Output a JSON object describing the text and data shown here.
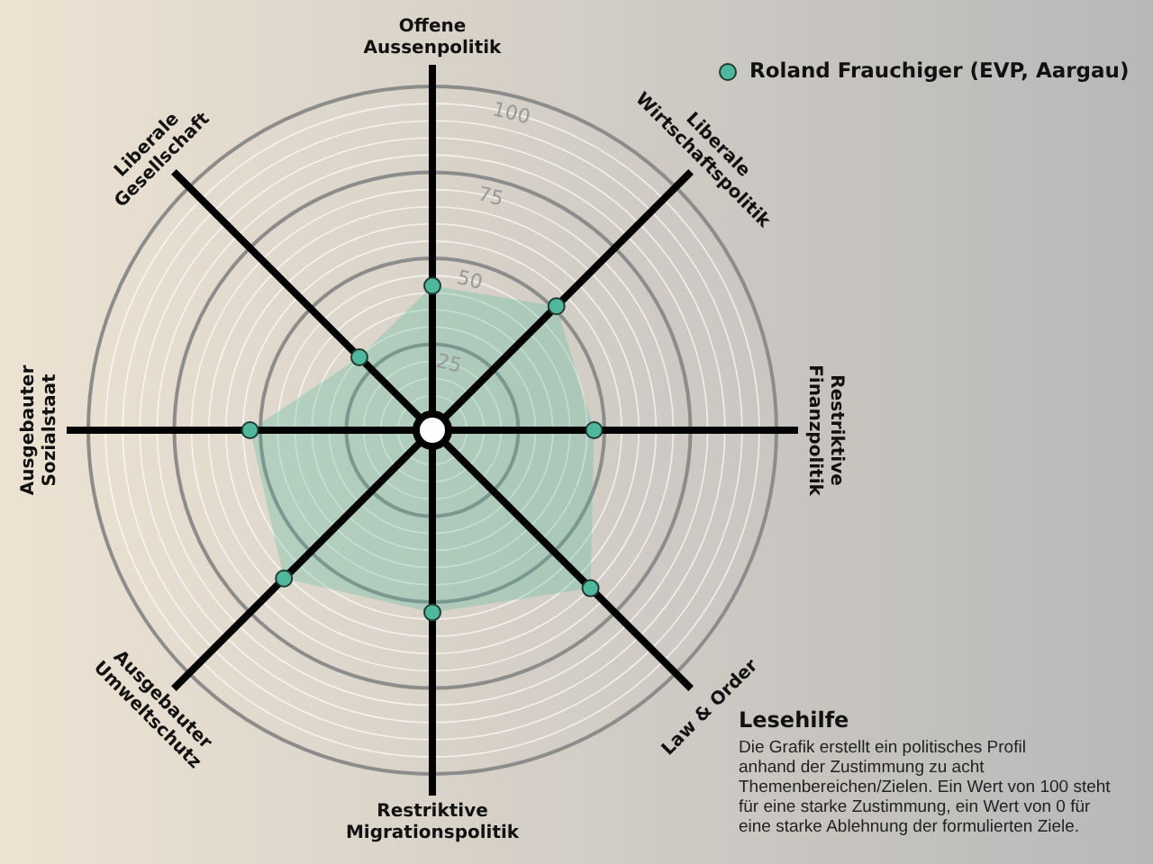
{
  "chart_data": {
    "type": "radar",
    "categories": [
      "Offene\nAussenpolitik",
      "Liberale\nWirtschaftspolitik",
      "Restriktive\nFinanzpolitik",
      "Law & Order",
      "Restriktive\nMigrationspolitik",
      "Ausgebauter\nUmweltschutz",
      "Ausgebauter\nSozialstaat",
      "Liberale\nGesellschaft"
    ],
    "series": [
      {
        "name": "Roland Frauchiger (EVP, Aargau)",
        "color": "#4fb89c",
        "values": [
          42,
          51,
          47,
          65,
          53,
          61,
          53,
          30
        ]
      }
    ],
    "ylim": [
      0,
      100
    ],
    "yticks": [
      25,
      50,
      75,
      100
    ],
    "grid": true,
    "legend": "top right",
    "marker": "circle",
    "annotations": [
      "Lesehilfe",
      "Die Grafik erstellt ein politisches Profil anhand der Zustimmung zu acht Themenbereichen/Zielen. Ein Wert von 100 steht für eine starke Zustimmung, ein Wert von 0 für eine starke Ablehnung der formulierten Ziele."
    ]
  }
}
